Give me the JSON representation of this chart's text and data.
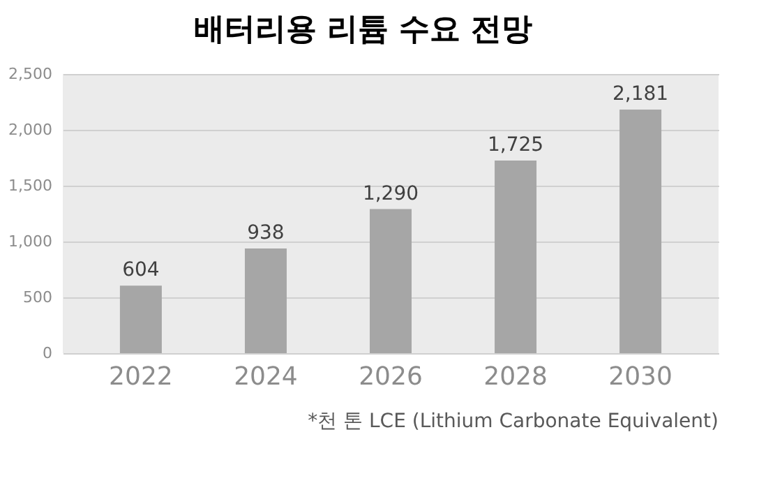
{
  "chart_data": {
    "type": "bar",
    "title": "배터리용 리튬 수요 전망",
    "categories": [
      "2022",
      "2024",
      "2026",
      "2028",
      "2030"
    ],
    "values": [
      604,
      938,
      1290,
      1725,
      2181
    ],
    "color": "#a6a6a6",
    "value_labels": [
      "604",
      "938",
      "1,290",
      "1,725",
      "2,181"
    ],
    "ylim": [
      0,
      2500
    ],
    "yticks": [
      0,
      500,
      {
        "value": 1000,
        "label": "1,000"
      },
      {
        "value": 1500,
        "label": "1,500"
      },
      {
        "value": 2000,
        "label": "2,000"
      },
      {
        "value": 2500,
        "label": "2,500"
      }
    ],
    "grid": "y",
    "annotations": [
      "*천 톤 LCE (Lithium Carbonate Equivalent)"
    ]
  }
}
